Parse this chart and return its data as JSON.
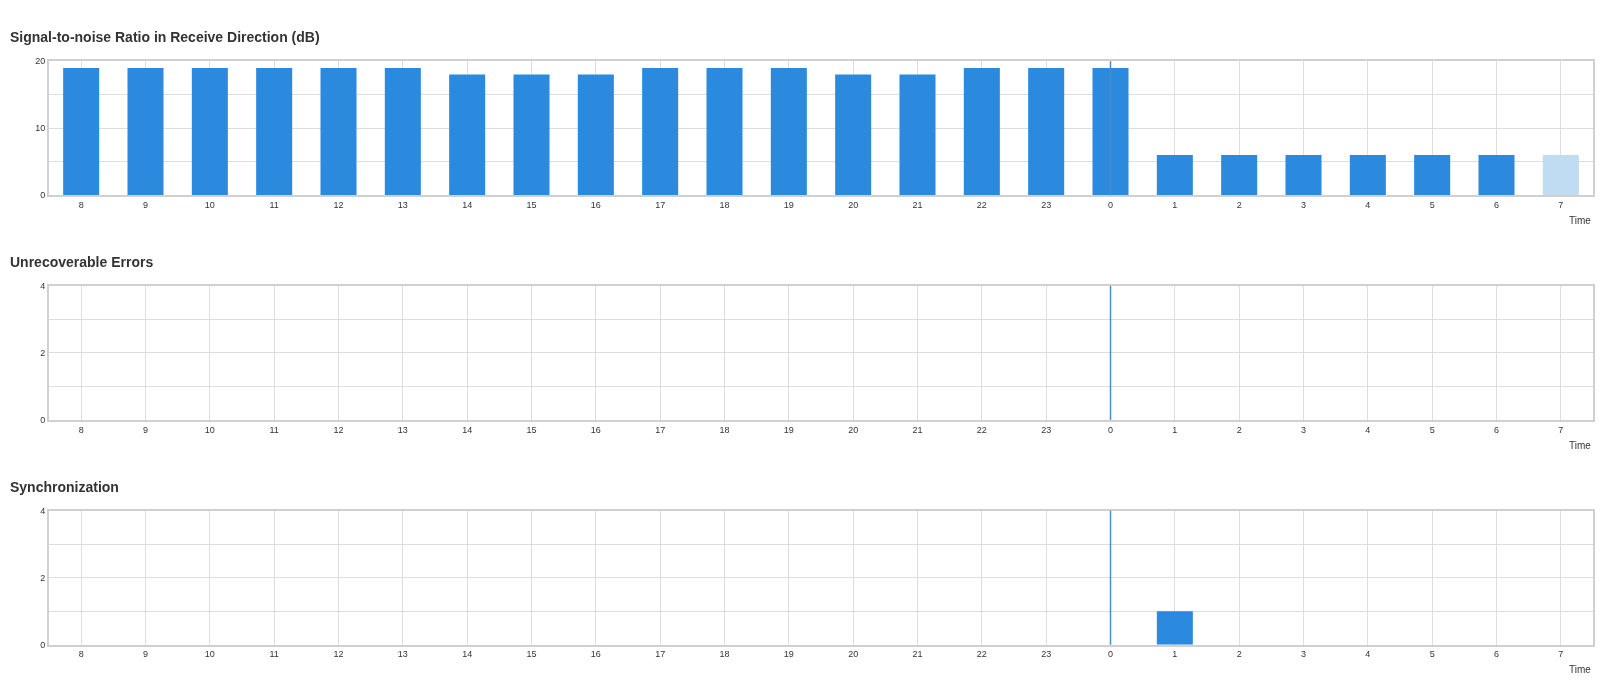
{
  "chart_data": [
    {
      "type": "bar",
      "title": "Signal-to-noise Ratio in Receive Direction (dB)",
      "xlabel": "Time",
      "categories": [
        "8",
        "9",
        "10",
        "11",
        "12",
        "13",
        "14",
        "15",
        "16",
        "17",
        "18",
        "19",
        "20",
        "21",
        "22",
        "23",
        "0",
        "1",
        "2",
        "3",
        "4",
        "5",
        "6",
        "7"
      ],
      "values": [
        19,
        19,
        19,
        19,
        19,
        19,
        18,
        18,
        18,
        19,
        19,
        19,
        18,
        18,
        19,
        19,
        19,
        6,
        6,
        6,
        6,
        6,
        6,
        6
      ],
      "colors": [
        "#2b8ade",
        "#2b8ade",
        "#2b8ade",
        "#2b8ade",
        "#2b8ade",
        "#2b8ade",
        "#2b8ade",
        "#2b8ade",
        "#2b8ade",
        "#2b8ade",
        "#2b8ade",
        "#2b8ade",
        "#2b8ade",
        "#2b8ade",
        "#2b8ade",
        "#2b8ade",
        "#2b8ade",
        "#2b8ade",
        "#2b8ade",
        "#2b8ade",
        "#2b8ade",
        "#2b8ade",
        "#2b8ade",
        "#c0dcf2"
      ],
      "ylim": [
        0,
        20
      ],
      "yticks": [
        0,
        {
          "value": 5,
          "label": null
        },
        10,
        {
          "value": 15,
          "label": null
        },
        20
      ],
      "grid": true,
      "ref_lines": [
        {
          "axis": "x",
          "value": "0",
          "color": "#4a8cc7"
        }
      ]
    },
    {
      "type": "bar",
      "title": "Unrecoverable Errors",
      "xlabel": "Time",
      "categories": [
        "8",
        "9",
        "10",
        "11",
        "12",
        "13",
        "14",
        "15",
        "16",
        "17",
        "18",
        "19",
        "20",
        "21",
        "22",
        "23",
        "0",
        "1",
        "2",
        "3",
        "4",
        "5",
        "6",
        "7"
      ],
      "values": [
        0,
        0,
        0,
        0,
        0,
        0,
        0,
        0,
        0,
        0,
        0,
        0,
        0,
        0,
        0,
        0,
        0,
        0,
        0,
        0,
        0,
        0,
        0,
        0
      ],
      "color": "#2b8ade",
      "ylim": [
        0,
        4
      ],
      "yticks": [
        0,
        {
          "value": 1,
          "label": null
        },
        2,
        {
          "value": 3,
          "label": null
        },
        4
      ],
      "grid": true,
      "ref_lines": [
        {
          "axis": "x",
          "value": "0",
          "color": "#4a8cc7"
        }
      ]
    },
    {
      "type": "bar",
      "title": "Synchronization",
      "xlabel": "Time",
      "categories": [
        "8",
        "9",
        "10",
        "11",
        "12",
        "13",
        "14",
        "15",
        "16",
        "17",
        "18",
        "19",
        "20",
        "21",
        "22",
        "23",
        "0",
        "1",
        "2",
        "3",
        "4",
        "5",
        "6",
        "7"
      ],
      "values": [
        0,
        0,
        0,
        0,
        0,
        0,
        0,
        0,
        0,
        0,
        0,
        0,
        0,
        0,
        0,
        0,
        0,
        1,
        0,
        0,
        0,
        0,
        0,
        0
      ],
      "color": "#2b8ade",
      "ylim": [
        0,
        4
      ],
      "yticks": [
        0,
        {
          "value": 1,
          "label": null
        },
        2,
        {
          "value": 3,
          "label": null
        },
        4
      ],
      "grid": true,
      "ref_lines": [
        {
          "axis": "x",
          "value": "0",
          "color": "#4a8cc7"
        }
      ]
    }
  ]
}
